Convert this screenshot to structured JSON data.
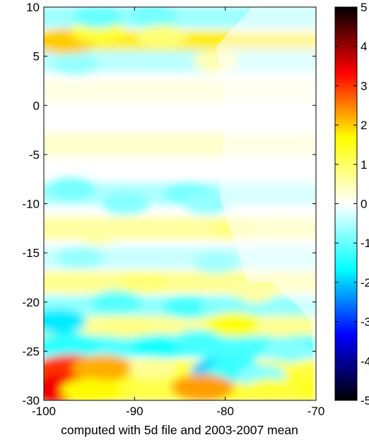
{
  "chart_data": {
    "type": "heatmap",
    "title": "",
    "xlabel": "computed with 5d file and 2003-2007 mean",
    "ylabel": "",
    "xlim": [
      -100,
      -70
    ],
    "ylim": [
      -30,
      10
    ],
    "xticks": [
      -100,
      -90,
      -80,
      -70
    ],
    "xtick_labels": [
      "-100",
      "-90",
      "-80",
      "-70"
    ],
    "yticks": [
      10,
      5,
      0,
      -5,
      -10,
      -15,
      -20,
      -25,
      -30
    ],
    "ytick_labels": [
      "10",
      "5",
      "0",
      "-5",
      "-10",
      "-15",
      "-20",
      "-25",
      "-30"
    ],
    "grid": false,
    "colorbar": {
      "position": "right",
      "limits": [
        -5,
        5
      ],
      "ticks": [
        5,
        4,
        3,
        2,
        1,
        0,
        -1,
        -2,
        -3,
        -4,
        -5
      ],
      "tick_labels": [
        "5",
        "4",
        "3",
        "2",
        "1",
        "0",
        "-1",
        "-2",
        "-3",
        "-4",
        "-5"
      ],
      "colormap": [
        "#000000",
        "#0000ff",
        "#00ffff",
        "#ffffff",
        "#ffff00",
        "#ff0000",
        "#000000"
      ]
    },
    "land_mask": [
      [
        -77.5,
        -18
      ],
      [
        -75,
        -18
      ],
      [
        -72.5,
        -20
      ],
      [
        -70.5,
        -22
      ],
      [
        -70.3,
        -26
      ],
      [
        -70.3,
        -30
      ]
    ],
    "field_bands": [
      {
        "lat": 9,
        "value": -0.7
      },
      {
        "lat": 6.5,
        "value": 1.8
      },
      {
        "lat": 4.5,
        "value": -0.5
      },
      {
        "lat": 1.5,
        "value": 0.2
      },
      {
        "lat": -4,
        "value": 0.4
      },
      {
        "lat": -9,
        "value": -0.6
      },
      {
        "lat": -12.5,
        "value": 0.7
      },
      {
        "lat": -15.5,
        "value": -0.4
      },
      {
        "lat": -18,
        "value": 0.8
      },
      {
        "lat": -20.5,
        "value": -0.8
      },
      {
        "lat": -22.5,
        "value": 0.8
      },
      {
        "lat": -24.5,
        "value": -1.3
      },
      {
        "lat": -27,
        "value": 1.4
      },
      {
        "lat": -29,
        "value": 1.6
      }
    ],
    "anomalies": [
      {
        "lon": -97.5,
        "lat": 6.5,
        "value": 2.0
      },
      {
        "lon": -94,
        "lat": 7.5,
        "value": 1.3
      },
      {
        "lon": -87,
        "lat": 7,
        "value": 0.9
      },
      {
        "lon": -94,
        "lat": 9,
        "value": -1.0
      },
      {
        "lon": -88,
        "lat": 9.2,
        "value": -0.9
      },
      {
        "lon": -96.5,
        "lat": 4.2,
        "value": -0.7
      },
      {
        "lon": -81,
        "lat": 4.5,
        "value": 0.5
      },
      {
        "lon": -97,
        "lat": -8.5,
        "value": -0.9
      },
      {
        "lon": -91,
        "lat": -10,
        "value": -0.8
      },
      {
        "lon": -84,
        "lat": -9,
        "value": -0.9
      },
      {
        "lon": -82,
        "lat": -10,
        "value": -0.7
      },
      {
        "lon": -79,
        "lat": -12.5,
        "value": 0.8
      },
      {
        "lon": -94,
        "lat": -13,
        "value": 0.6
      },
      {
        "lon": -96,
        "lat": -15.5,
        "value": -0.7
      },
      {
        "lon": -81,
        "lat": -16,
        "value": -0.6
      },
      {
        "lon": -89,
        "lat": -18,
        "value": 0.9
      },
      {
        "lon": -77,
        "lat": -19,
        "value": 0.6
      },
      {
        "lon": -92,
        "lat": -20,
        "value": -1.1
      },
      {
        "lon": -84,
        "lat": -20.5,
        "value": -1.2
      },
      {
        "lon": -80,
        "lat": -20.5,
        "value": -0.8
      },
      {
        "lon": -98.5,
        "lat": -22,
        "value": -1.8
      },
      {
        "lon": -91,
        "lat": -22.5,
        "value": 0.8
      },
      {
        "lon": -79,
        "lat": -22.3,
        "value": 1.6
      },
      {
        "lon": -74,
        "lat": -22.5,
        "value": 0.7
      },
      {
        "lon": -97,
        "lat": -24.3,
        "value": -1.4
      },
      {
        "lon": -87,
        "lat": -24.5,
        "value": -1.5
      },
      {
        "lon": -83,
        "lat": -24,
        "value": -1.2
      },
      {
        "lon": -79.5,
        "lat": -25.5,
        "value": -1.2
      },
      {
        "lon": -73,
        "lat": -25,
        "value": -0.8
      },
      {
        "lon": -97,
        "lat": -26.8,
        "value": 3.0
      },
      {
        "lon": -93.5,
        "lat": -26.7,
        "value": 2.2
      },
      {
        "lon": -88,
        "lat": -26.8,
        "value": 0.7
      },
      {
        "lon": -80.5,
        "lat": -27,
        "value": -2.0
      },
      {
        "lon": -79,
        "lat": -26.8,
        "value": -1.3
      },
      {
        "lon": -76,
        "lat": -27.5,
        "value": -0.8
      },
      {
        "lon": -98.5,
        "lat": -28.8,
        "value": 3.4
      },
      {
        "lon": -95,
        "lat": -29,
        "value": 1.7
      },
      {
        "lon": -88,
        "lat": -29,
        "value": 1.2
      },
      {
        "lon": -82.5,
        "lat": -28.7,
        "value": 2.3
      },
      {
        "lon": -75,
        "lat": -29,
        "value": 1.3
      }
    ]
  }
}
